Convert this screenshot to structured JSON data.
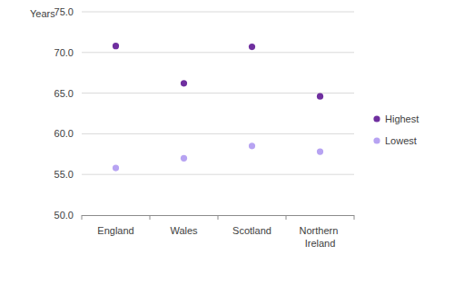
{
  "chart_data": {
    "type": "scatter",
    "y_label": "Years",
    "categories": [
      "England",
      "Wales",
      "Scotland",
      "Northern Ireland"
    ],
    "series": [
      {
        "name": "Highest",
        "color": "#6f2f9f",
        "marker": "circle",
        "values": [
          70.8,
          66.2,
          70.7,
          64.6
        ]
      },
      {
        "name": "Lowest",
        "color": "#b7a3f2",
        "marker": "circle",
        "values": [
          55.8,
          57.0,
          58.5,
          57.8
        ]
      }
    ],
    "ylim": [
      50,
      75
    ],
    "yticks": [
      {
        "value": 50,
        "label": "50.0"
      },
      {
        "value": 55,
        "label": "55.0"
      },
      {
        "value": 60,
        "label": "60.0"
      },
      {
        "value": 65,
        "label": "65.0"
      },
      {
        "value": 70,
        "label": "70.0"
      },
      {
        "value": 75,
        "label": "75.0"
      }
    ],
    "grid": true,
    "legend": "right"
  }
}
